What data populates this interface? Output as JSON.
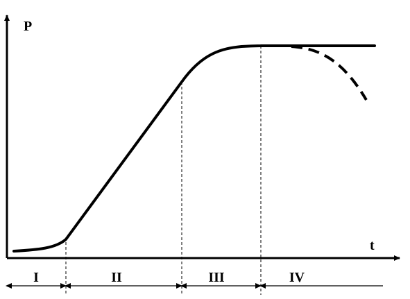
{
  "figure": {
    "y_axis_label": "P",
    "x_axis_label": "t",
    "phases": [
      {
        "label": "I"
      },
      {
        "label": "II"
      },
      {
        "label": "III"
      },
      {
        "label": "IV"
      }
    ]
  },
  "style": {
    "line_color": "#000000",
    "background": "#ffffff"
  }
}
